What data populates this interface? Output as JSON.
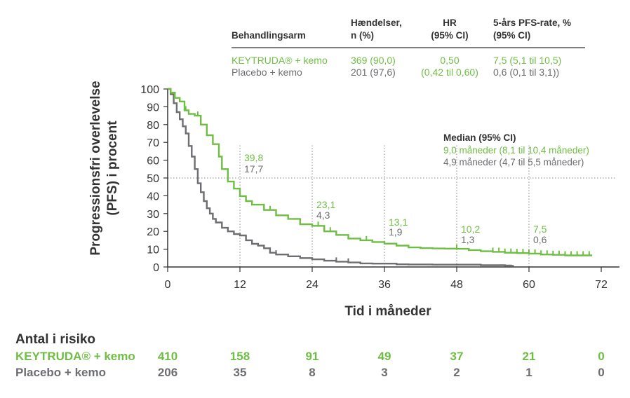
{
  "colors": {
    "keytruda": "#6fbe44",
    "placebo": "#6d6e71",
    "text": "#333333",
    "axis": "#333333"
  },
  "table": {
    "headers": {
      "arm": "Behandlingsarm",
      "events": [
        "Hændelser,",
        "n (%)"
      ],
      "hr": [
        "HR",
        "(95% CI)"
      ],
      "rate": [
        "5-års PFS-rate, %",
        "(95% CI)"
      ]
    },
    "rows": [
      {
        "arm": "KEYTRUDA® + kemo",
        "events": "369 (90,0)",
        "hr": "0,50",
        "rate": "7,5 (5,1 til 10,5)"
      },
      {
        "arm": "Placebo + kemo",
        "events": "201 (97,6)",
        "hr": "(0,42 til 0,60)",
        "rate": "0,6 (0,1 til 3,1))"
      }
    ]
  },
  "median": {
    "title": "Median (95% CI)",
    "keytruda": "9,0 måneder (8,1 til 10,4 måneder)",
    "placebo": "4,9 måneder (4,7 til 5,5 måneder)"
  },
  "risk": {
    "title": "Antal i risiko",
    "rows": [
      {
        "label": "KEYTRUDA® + kemo",
        "values": [
          "410",
          "158",
          "91",
          "49",
          "37",
          "21",
          "0"
        ]
      },
      {
        "label": "Placebo + kemo",
        "values": [
          "206",
          "35",
          "8",
          "3",
          "2",
          "1",
          "0"
        ]
      }
    ]
  },
  "chart_data": {
    "type": "line",
    "xlabel": "Tid i måneder",
    "ylabel": [
      "Progressionsfri overlevelse",
      "(PFS) i procent"
    ],
    "xlim": [
      0,
      72
    ],
    "ylim": [
      0,
      100
    ],
    "xticks": [
      "0",
      "12",
      "24",
      "36",
      "48",
      "60",
      "72"
    ],
    "yticks": [
      "0",
      "10",
      "20",
      "30",
      "40",
      "50",
      "60",
      "70",
      "80",
      "90",
      "100"
    ],
    "reference_line_y": 50,
    "milestones": [
      {
        "x": 12,
        "keytruda": "39,8",
        "placebo": "17,7"
      },
      {
        "x": 24,
        "keytruda": "23,1",
        "placebo": "4,3"
      },
      {
        "x": 36,
        "keytruda": "13,1",
        "placebo": "1,9"
      },
      {
        "x": 48,
        "keytruda": "10,2",
        "placebo": "1,3"
      },
      {
        "x": 60,
        "keytruda": "7,5",
        "placebo": "0,6"
      }
    ],
    "series": [
      {
        "name": "KEYTRUDA® + kemo",
        "points": [
          [
            0,
            100
          ],
          [
            0.5,
            98
          ],
          [
            1.2,
            95
          ],
          [
            2,
            93
          ],
          [
            2.8,
            88
          ],
          [
            3.5,
            86
          ],
          [
            4.5,
            85
          ],
          [
            5.5,
            80
          ],
          [
            6.5,
            74
          ],
          [
            7.5,
            69
          ],
          [
            8.5,
            62
          ],
          [
            9,
            55
          ],
          [
            10,
            48
          ],
          [
            11,
            44
          ],
          [
            12,
            39.8
          ],
          [
            13,
            37
          ],
          [
            14,
            35
          ],
          [
            16,
            32
          ],
          [
            18,
            29
          ],
          [
            20,
            27
          ],
          [
            22,
            24
          ],
          [
            24,
            23.1
          ],
          [
            26,
            20
          ],
          [
            28,
            18
          ],
          [
            30,
            16
          ],
          [
            32,
            15
          ],
          [
            34,
            14
          ],
          [
            36,
            13.1
          ],
          [
            38,
            12
          ],
          [
            40,
            11
          ],
          [
            42,
            10.6
          ],
          [
            44,
            10.4
          ],
          [
            46,
            10.3
          ],
          [
            48,
            10.2
          ],
          [
            50,
            9.5
          ],
          [
            52,
            8.8
          ],
          [
            54,
            8.5
          ],
          [
            56,
            8
          ],
          [
            58,
            7.8
          ],
          [
            60,
            7.5
          ],
          [
            62,
            7
          ],
          [
            64,
            6.8
          ],
          [
            66,
            6.5
          ],
          [
            68,
            6.5
          ],
          [
            70,
            6.5
          ]
        ],
        "censor_x": [
          3,
          5,
          9,
          13,
          17,
          25,
          26,
          27,
          28,
          33,
          48,
          54,
          55,
          56,
          57,
          58,
          59,
          60,
          61,
          62,
          63,
          64,
          65,
          66,
          67,
          68,
          69,
          70
        ]
      },
      {
        "name": "Placebo + kemo",
        "points": [
          [
            0,
            100
          ],
          [
            0.5,
            97
          ],
          [
            1,
            92
          ],
          [
            1.5,
            87
          ],
          [
            2,
            83
          ],
          [
            2.5,
            79
          ],
          [
            3,
            75
          ],
          [
            3.5,
            68
          ],
          [
            4,
            62
          ],
          [
            4.5,
            55
          ],
          [
            5,
            47
          ],
          [
            5.5,
            42
          ],
          [
            6,
            37
          ],
          [
            6.5,
            33
          ],
          [
            7,
            30
          ],
          [
            7.5,
            27
          ],
          [
            8,
            25
          ],
          [
            9,
            22
          ],
          [
            10,
            20
          ],
          [
            11,
            18.5
          ],
          [
            12,
            17.7
          ],
          [
            13,
            15
          ],
          [
            14,
            13
          ],
          [
            15,
            12
          ],
          [
            16,
            10.5
          ],
          [
            17,
            8
          ],
          [
            18,
            7
          ],
          [
            20,
            6
          ],
          [
            22,
            5
          ],
          [
            24,
            4.3
          ],
          [
            26,
            3.5
          ],
          [
            28,
            3
          ],
          [
            30,
            2.5
          ],
          [
            32,
            2
          ],
          [
            34,
            1.9
          ],
          [
            36,
            1.9
          ],
          [
            38,
            1.5
          ],
          [
            40,
            1.4
          ],
          [
            44,
            1.3
          ],
          [
            48,
            1.3
          ],
          [
            52,
            1
          ],
          [
            56,
            0.8
          ],
          [
            57,
            0.6
          ]
        ],
        "censor_x": [
          13,
          18,
          28,
          30
        ]
      }
    ]
  }
}
